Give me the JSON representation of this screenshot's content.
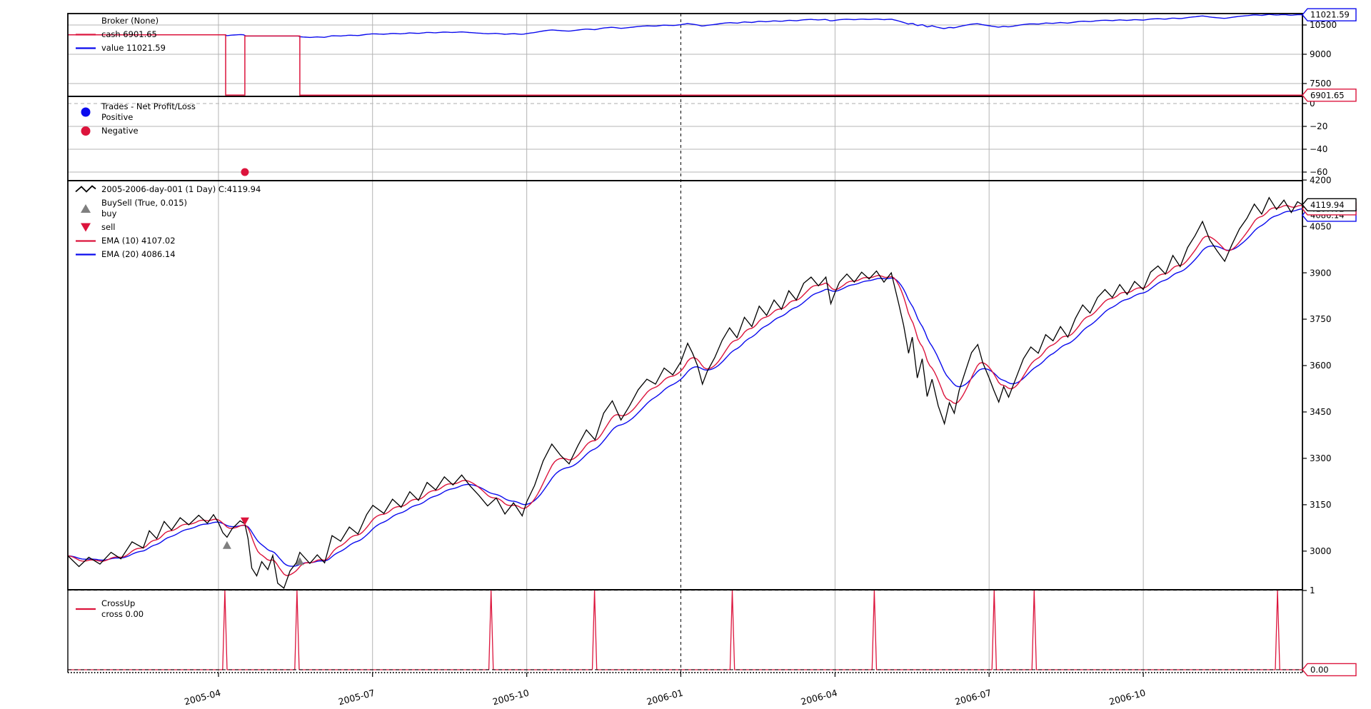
{
  "colors": {
    "red": "#dc143c",
    "blue": "#0b0bee",
    "grey": "#7f7f7f",
    "black": "#000000",
    "grid": "#b4b4b4",
    "dash": "#bdbdbd",
    "white": "#ffffff"
  },
  "x_axis": {
    "ticks": [
      {
        "label": "2005-04",
        "f": 0.122
      },
      {
        "label": "2005-07",
        "f": 0.2468
      },
      {
        "label": "2005-10",
        "f": 0.3717
      },
      {
        "label": "2006-01",
        "f": 0.4965
      },
      {
        "label": "2006-04",
        "f": 0.6214
      },
      {
        "label": "2006-07",
        "f": 0.7462
      },
      {
        "label": "2006-10",
        "f": 0.8711
      }
    ],
    "year_line_f": 0.4965
  },
  "chart_data": [
    {
      "name": "broker",
      "type": "line",
      "title": "Broker (None)",
      "ylim": [
        6841,
        11085
      ],
      "yticks": [
        {
          "label": "10500",
          "v": 10500
        },
        {
          "label": "9000",
          "v": 9000
        },
        {
          "label": "7500",
          "v": 7500
        }
      ],
      "hgrid": [
        10500,
        9000,
        7500
      ],
      "legend": [
        {
          "swatch": "none",
          "color": "black",
          "lines": [
            "Broker (None)"
          ]
        },
        {
          "swatch": "line",
          "color": "red",
          "lines": [
            "cash 6901.65"
          ]
        },
        {
          "swatch": "line",
          "color": "blue",
          "lines": [
            "value 11021.59"
          ]
        }
      ],
      "cash_final": 6901.65,
      "value_final": 11021.59,
      "cash_segments": [
        {
          "from": 0.0,
          "to": 0.1278,
          "v": 10000
        },
        {
          "from": 0.1278,
          "to": 0.1434,
          "v": 6909
        },
        {
          "from": 0.1434,
          "to": 0.1879,
          "v": 9938
        },
        {
          "from": 0.1879,
          "to": 1.0,
          "v": 6901.65
        }
      ],
      "position_segments": [
        {
          "from": 0.1278,
          "to": 0.1434
        },
        {
          "from": 0.1879,
          "to": 1.0
        }
      ],
      "tags": [
        {
          "text": "11021.59",
          "v": 11021.59,
          "color": "blue"
        },
        {
          "text": "6901.65",
          "v": 6901.65,
          "color": "red"
        }
      ]
    },
    {
      "name": "trades",
      "type": "scatter",
      "title": "Trades - Net Profit/Loss",
      "ylim": [
        -67.5,
        6.25
      ],
      "yticks": [
        {
          "label": "0",
          "v": 0
        },
        {
          "label": "−20",
          "v": -20
        },
        {
          "label": "−40",
          "v": -40
        },
        {
          "label": "−60",
          "v": -60
        }
      ],
      "hgrid": [
        -20,
        -40,
        -60
      ],
      "hgrid_dash": [
        0
      ],
      "legend": [
        {
          "swatch": "dot",
          "color": "blue",
          "lines": [
            "Trades - Net Profit/Loss",
            "Positive"
          ]
        },
        {
          "swatch": "dot",
          "color": "red",
          "lines": [
            "Negative"
          ]
        }
      ],
      "points": [
        {
          "f": 0.1434,
          "v": -60,
          "color": "red"
        }
      ],
      "tags": []
    },
    {
      "name": "price",
      "type": "line",
      "title": "2005-2006-day-001 (1 Day) C:4119.94",
      "close_last": 4119.94,
      "ylim": [
        2875,
        4198
      ],
      "yticks": [
        {
          "label": "4200",
          "v": 4200
        },
        {
          "label": "4050",
          "v": 4050
        },
        {
          "label": "3900",
          "v": 3900
        },
        {
          "label": "3750",
          "v": 3750
        },
        {
          "label": "3600",
          "v": 3600
        },
        {
          "label": "3450",
          "v": 3450
        },
        {
          "label": "3300",
          "v": 3300
        },
        {
          "label": "3150",
          "v": 3150
        },
        {
          "label": "3000",
          "v": 3000
        }
      ],
      "hgrid": [],
      "legend": [
        {
          "swatch": "squiggle",
          "color": "black",
          "lines": [
            "2005-2006-day-001 (1 Day) C:4119.94"
          ]
        },
        {
          "swatch": "tri-up",
          "color": "grey",
          "lines": [
            "BuySell (True, 0.015)",
            "buy"
          ]
        },
        {
          "swatch": "tri-down",
          "color": "red",
          "lines": [
            "sell"
          ]
        },
        {
          "swatch": "line",
          "color": "red",
          "lines": [
            "EMA (10) 4107.02"
          ]
        },
        {
          "swatch": "line",
          "color": "blue",
          "lines": [
            "EMA (20) 4086.14"
          ]
        }
      ],
      "indicators": [
        {
          "label": "EMA (10) 4107.02",
          "period": 10,
          "color": "red",
          "last": 4107.02
        },
        {
          "label": "EMA (20) 4086.14",
          "period": 20,
          "color": "blue",
          "last": 4086.14
        }
      ],
      "markers": [
        {
          "kind": "buy",
          "f": 0.1289,
          "v": 3020
        },
        {
          "kind": "sell",
          "f": 0.1434,
          "v": 3096
        },
        {
          "kind": "buy",
          "f": 0.1879,
          "v": 2968
        }
      ],
      "close": [
        [
          0.0,
          2985
        ],
        [
          0.009,
          2950
        ],
        [
          0.017,
          2980
        ],
        [
          0.026,
          2958
        ],
        [
          0.035,
          2996
        ],
        [
          0.043,
          2975
        ],
        [
          0.052,
          3030
        ],
        [
          0.061,
          3010
        ],
        [
          0.066,
          3066
        ],
        [
          0.072,
          3040
        ],
        [
          0.078,
          3096
        ],
        [
          0.084,
          3068
        ],
        [
          0.091,
          3108
        ],
        [
          0.098,
          3085
        ],
        [
          0.106,
          3116
        ],
        [
          0.113,
          3090
        ],
        [
          0.118,
          3118
        ],
        [
          0.122,
          3092
        ],
        [
          0.1255,
          3060
        ],
        [
          0.1289,
          3045
        ],
        [
          0.133,
          3072
        ],
        [
          0.1395,
          3098
        ],
        [
          0.1434,
          3088
        ],
        [
          0.146,
          3040
        ],
        [
          0.149,
          2945
        ],
        [
          0.153,
          2920
        ],
        [
          0.157,
          2966
        ],
        [
          0.162,
          2940
        ],
        [
          0.166,
          2986
        ],
        [
          0.17,
          2896
        ],
        [
          0.175,
          2880
        ],
        [
          0.18,
          2936
        ],
        [
          0.185,
          2962
        ],
        [
          0.1879,
          2996
        ],
        [
          0.196,
          2960
        ],
        [
          0.202,
          2988
        ],
        [
          0.208,
          2962
        ],
        [
          0.214,
          3050
        ],
        [
          0.221,
          3032
        ],
        [
          0.228,
          3078
        ],
        [
          0.235,
          3055
        ],
        [
          0.242,
          3118
        ],
        [
          0.247,
          3148
        ],
        [
          0.256,
          3122
        ],
        [
          0.263,
          3168
        ],
        [
          0.27,
          3142
        ],
        [
          0.277,
          3192
        ],
        [
          0.284,
          3164
        ],
        [
          0.291,
          3222
        ],
        [
          0.298,
          3198
        ],
        [
          0.305,
          3240
        ],
        [
          0.312,
          3214
        ],
        [
          0.319,
          3246
        ],
        [
          0.326,
          3210
        ],
        [
          0.333,
          3180
        ],
        [
          0.34,
          3146
        ],
        [
          0.347,
          3172
        ],
        [
          0.354,
          3120
        ],
        [
          0.361,
          3156
        ],
        [
          0.368,
          3114
        ],
        [
          0.3717,
          3160
        ],
        [
          0.378,
          3212
        ],
        [
          0.385,
          3292
        ],
        [
          0.392,
          3346
        ],
        [
          0.399,
          3310
        ],
        [
          0.406,
          3282
        ],
        [
          0.413,
          3340
        ],
        [
          0.42,
          3392
        ],
        [
          0.427,
          3360
        ],
        [
          0.434,
          3446
        ],
        [
          0.441,
          3486
        ],
        [
          0.448,
          3424
        ],
        [
          0.455,
          3470
        ],
        [
          0.462,
          3522
        ],
        [
          0.469,
          3556
        ],
        [
          0.476,
          3540
        ],
        [
          0.483,
          3592
        ],
        [
          0.49,
          3570
        ],
        [
          0.4965,
          3612
        ],
        [
          0.502,
          3672
        ],
        [
          0.506,
          3640
        ],
        [
          0.51,
          3600
        ],
        [
          0.514,
          3540
        ],
        [
          0.518,
          3582
        ],
        [
          0.524,
          3626
        ],
        [
          0.53,
          3682
        ],
        [
          0.536,
          3722
        ],
        [
          0.542,
          3690
        ],
        [
          0.548,
          3756
        ],
        [
          0.554,
          3726
        ],
        [
          0.56,
          3792
        ],
        [
          0.566,
          3762
        ],
        [
          0.572,
          3812
        ],
        [
          0.578,
          3782
        ],
        [
          0.584,
          3842
        ],
        [
          0.59,
          3812
        ],
        [
          0.596,
          3866
        ],
        [
          0.602,
          3886
        ],
        [
          0.608,
          3858
        ],
        [
          0.614,
          3886
        ],
        [
          0.618,
          3800
        ],
        [
          0.6214,
          3836
        ],
        [
          0.625,
          3870
        ],
        [
          0.631,
          3896
        ],
        [
          0.637,
          3870
        ],
        [
          0.643,
          3902
        ],
        [
          0.649,
          3880
        ],
        [
          0.655,
          3906
        ],
        [
          0.661,
          3870
        ],
        [
          0.667,
          3900
        ],
        [
          0.673,
          3800
        ],
        [
          0.677,
          3730
        ],
        [
          0.681,
          3640
        ],
        [
          0.684,
          3692
        ],
        [
          0.688,
          3560
        ],
        [
          0.692,
          3622
        ],
        [
          0.696,
          3500
        ],
        [
          0.7,
          3556
        ],
        [
          0.705,
          3470
        ],
        [
          0.71,
          3412
        ],
        [
          0.714,
          3480
        ],
        [
          0.718,
          3446
        ],
        [
          0.722,
          3520
        ],
        [
          0.727,
          3582
        ],
        [
          0.732,
          3642
        ],
        [
          0.737,
          3668
        ],
        [
          0.741,
          3610
        ],
        [
          0.7462,
          3560
        ],
        [
          0.75,
          3520
        ],
        [
          0.754,
          3482
        ],
        [
          0.758,
          3532
        ],
        [
          0.762,
          3498
        ],
        [
          0.768,
          3560
        ],
        [
          0.774,
          3622
        ],
        [
          0.78,
          3660
        ],
        [
          0.786,
          3640
        ],
        [
          0.792,
          3700
        ],
        [
          0.798,
          3680
        ],
        [
          0.804,
          3726
        ],
        [
          0.81,
          3692
        ],
        [
          0.816,
          3752
        ],
        [
          0.822,
          3796
        ],
        [
          0.828,
          3770
        ],
        [
          0.834,
          3820
        ],
        [
          0.84,
          3846
        ],
        [
          0.846,
          3820
        ],
        [
          0.852,
          3862
        ],
        [
          0.858,
          3830
        ],
        [
          0.864,
          3872
        ],
        [
          0.8711,
          3846
        ],
        [
          0.877,
          3902
        ],
        [
          0.883,
          3922
        ],
        [
          0.889,
          3896
        ],
        [
          0.895,
          3956
        ],
        [
          0.901,
          3920
        ],
        [
          0.907,
          3982
        ],
        [
          0.913,
          4020
        ],
        [
          0.919,
          4066
        ],
        [
          0.925,
          4006
        ],
        [
          0.931,
          3970
        ],
        [
          0.937,
          3937
        ],
        [
          0.943,
          3992
        ],
        [
          0.949,
          4042
        ],
        [
          0.955,
          4076
        ],
        [
          0.961,
          4122
        ],
        [
          0.967,
          4090
        ],
        [
          0.973,
          4143
        ],
        [
          0.979,
          4105
        ],
        [
          0.985,
          4135
        ],
        [
          0.991,
          4095
        ],
        [
          0.996,
          4130
        ],
        [
          1.0,
          4119.94
        ]
      ],
      "tags": [
        {
          "text": "4086.14",
          "v": 4086.14,
          "color": "blue"
        },
        {
          "text": "4107.02",
          "v": 4107.02,
          "color": "red"
        },
        {
          "text": "4119.94",
          "v": 4119.94,
          "color": "black"
        }
      ]
    },
    {
      "name": "crossup",
      "type": "line",
      "title": "CrossUp",
      "cross_level": 0.0,
      "ylim": [
        -0.0365,
        1.009
      ],
      "yticks": [
        {
          "label": "1",
          "v": 1
        }
      ],
      "hgrid": [],
      "hgrid_dash": [
        1,
        0
      ],
      "legend": [
        {
          "swatch": "line",
          "color": "red",
          "lines": [
            "CrossUp",
            "cross 0.00"
          ]
        }
      ],
      "spikes_f": [
        0.1272,
        0.1856,
        0.3428,
        0.4266,
        0.5382,
        0.6532,
        0.7503,
        0.7827,
        0.9798
      ],
      "tags": [
        {
          "text": "0.00",
          "v": 0,
          "color": "red"
        }
      ]
    }
  ]
}
